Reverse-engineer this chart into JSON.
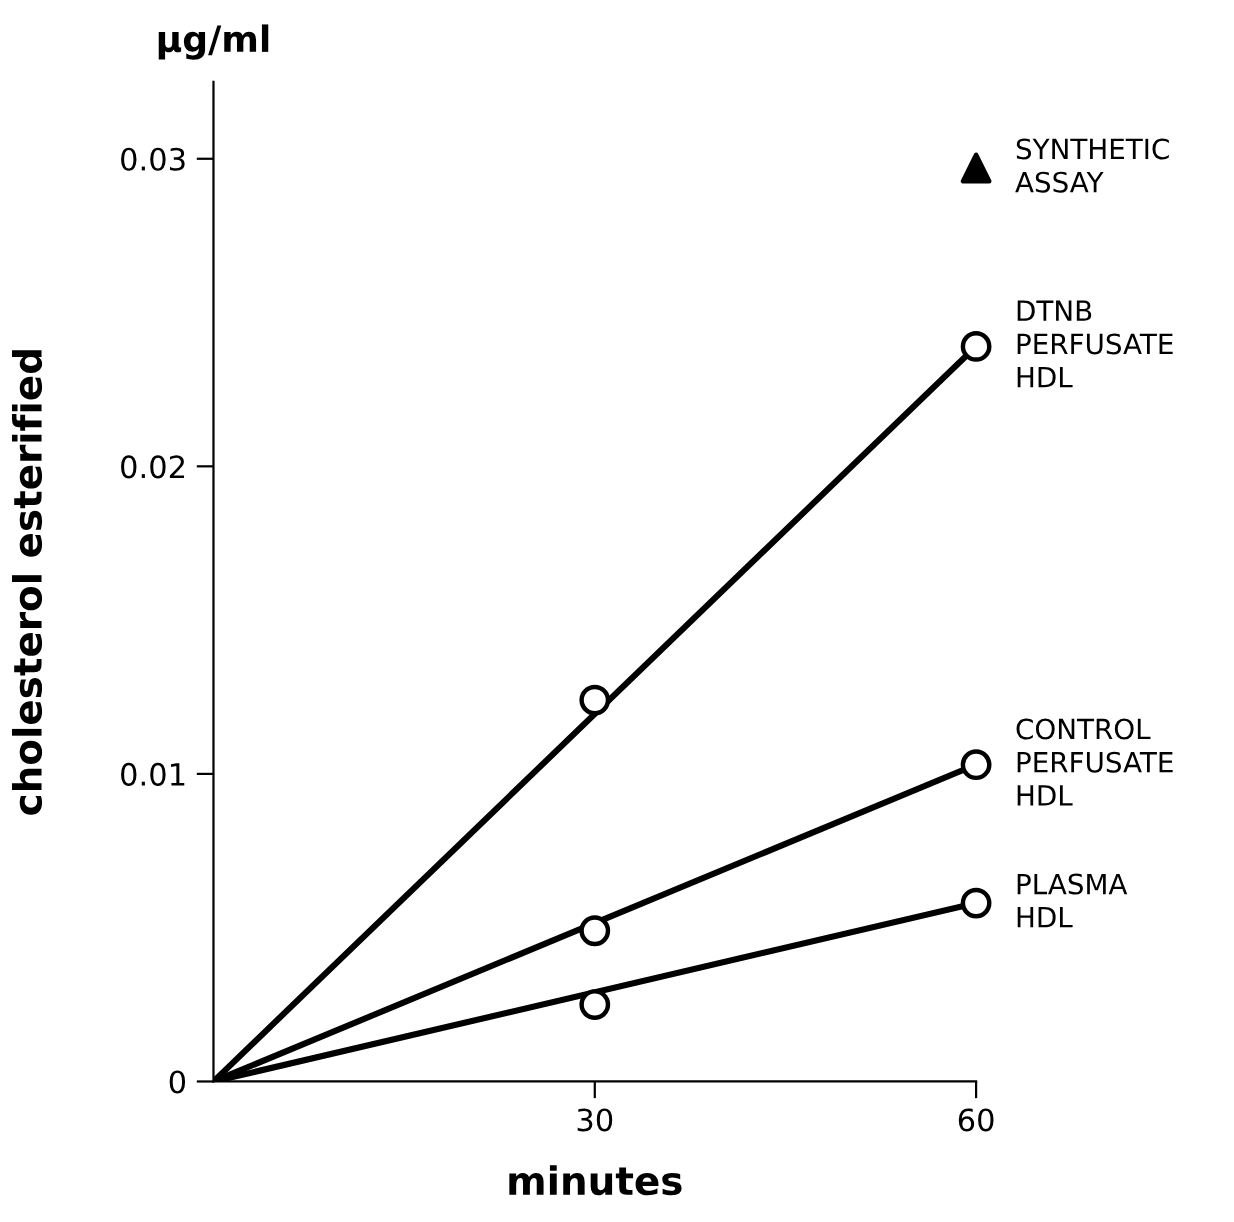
{
  "chart_data": {
    "type": "scatter",
    "xlabel": "minutes",
    "ylabel": "cholesterol esterified",
    "annotations": [
      "µg/ml"
    ],
    "xlim": [
      0,
      60
    ],
    "ylim": [
      0,
      0.0325
    ],
    "xticks": [
      30,
      60
    ],
    "yticks": [
      0,
      0.01,
      0.02,
      0.03
    ],
    "grid": false,
    "legend": false,
    "series": [
      {
        "type": "line",
        "x": [
          0,
          60
        ],
        "values": [
          0,
          0.0239
        ],
        "color": "#000000",
        "line_style": "solid",
        "marker": "none"
      },
      {
        "type": "line",
        "x": [
          0,
          60
        ],
        "values": [
          0,
          0.0103
        ],
        "color": "#000000",
        "line_style": "solid",
        "marker": "none"
      },
      {
        "type": "line",
        "x": [
          0,
          60
        ],
        "values": [
          0,
          0.0058
        ],
        "color": "#000000",
        "line_style": "solid",
        "marker": "none"
      },
      {
        "name": "DTNB\nPERFUSATE\nHDL",
        "x": [
          30,
          60
        ],
        "values": [
          0.0124,
          0.0239
        ],
        "color": "#000000",
        "marker": "circle"
      },
      {
        "name": "CONTROL\nPERFUSATE\nHDL",
        "x": [
          30,
          60
        ],
        "values": [
          0.0049,
          0.0103
        ],
        "color": "#000000",
        "marker": "circle"
      },
      {
        "name": "PLASMA\nHDL",
        "x": [
          30,
          60
        ],
        "values": [
          0.0025,
          0.0058
        ],
        "color": "#000000",
        "marker": "circle"
      },
      {
        "name": "SYNTHETIC\nASSAY",
        "x": [
          60
        ],
        "values": [
          0.0297
        ],
        "color": "#000000",
        "marker": "triangle"
      }
    ]
  }
}
